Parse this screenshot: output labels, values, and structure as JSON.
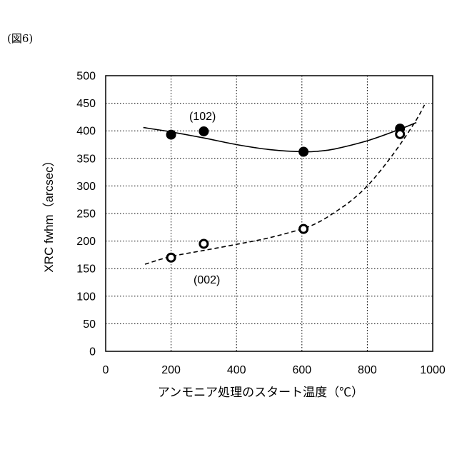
{
  "figure_label": "(図6)",
  "chart_data": {
    "type": "scatter",
    "xlabel": "アンモニア処理のスタート温度（℃）",
    "ylabel": "XRC fwhm（arcsec）",
    "xlim": [
      0,
      1000
    ],
    "ylim": [
      0,
      500
    ],
    "xticks": [
      0,
      200,
      400,
      600,
      800,
      1000
    ],
    "yticks": [
      0,
      50,
      100,
      150,
      200,
      250,
      300,
      350,
      400,
      450,
      500
    ],
    "grid": "dotted",
    "series": [
      {
        "name": "(102)",
        "marker": "filled-circle",
        "x": [
          200,
          300,
          605,
          900
        ],
        "y": [
          393,
          399,
          362,
          404
        ],
        "trend": {
          "style": "solid",
          "x": [
            115,
            200,
            300,
            400,
            500,
            600,
            650,
            700,
            800,
            900,
            950
          ],
          "y": [
            406,
            398,
            387,
            375,
            366,
            362,
            363,
            367,
            382,
            403,
            415
          ]
        }
      },
      {
        "name": "(002)",
        "marker": "open-circle",
        "x": [
          200,
          300,
          605,
          900
        ],
        "y": [
          170,
          195,
          222,
          394
        ],
        "trend": {
          "style": "dashed",
          "x": [
            120,
            200,
            300,
            400,
            500,
            600,
            650,
            700,
            750,
            800,
            850,
            900,
            950,
            975
          ],
          "y": [
            158,
            172,
            183,
            194,
            206,
            222,
            234,
            252,
            273,
            300,
            335,
            375,
            420,
            447
          ]
        }
      }
    ]
  }
}
